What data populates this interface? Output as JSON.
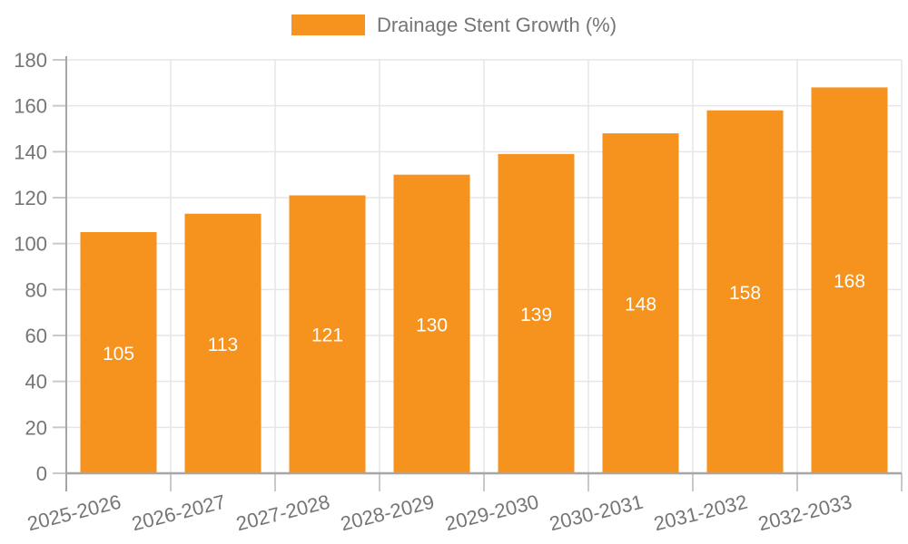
{
  "chart_data": {
    "type": "bar",
    "title": "",
    "xlabel": "",
    "ylabel": "",
    "legend": {
      "label": "Drainage Stent Growth (%)",
      "position": "top-center",
      "swatch_color": "#F6921E"
    },
    "categories": [
      "2025-2026",
      "2026-2027",
      "2027-2028",
      "2028-2029",
      "2029-2030",
      "2030-2031",
      "2031-2032",
      "2032-2033"
    ],
    "series": [
      {
        "name": "Drainage Stent Growth (%)",
        "values": [
          105,
          113,
          121,
          130,
          139,
          148,
          158,
          168
        ]
      }
    ],
    "value_labels_shown": true,
    "ylim": [
      0,
      180
    ],
    "ytick_step": 20,
    "yticks": [
      0,
      20,
      40,
      60,
      80,
      100,
      120,
      140,
      160,
      180
    ],
    "grid": true,
    "colors": {
      "bar": "#F6921E",
      "value_label": "#FFFFFF",
      "axis_text": "#757575",
      "grid_line": "#E6E6E6",
      "tick_line": "#C9C9C9",
      "axis_line": "#A6A6A6"
    }
  }
}
